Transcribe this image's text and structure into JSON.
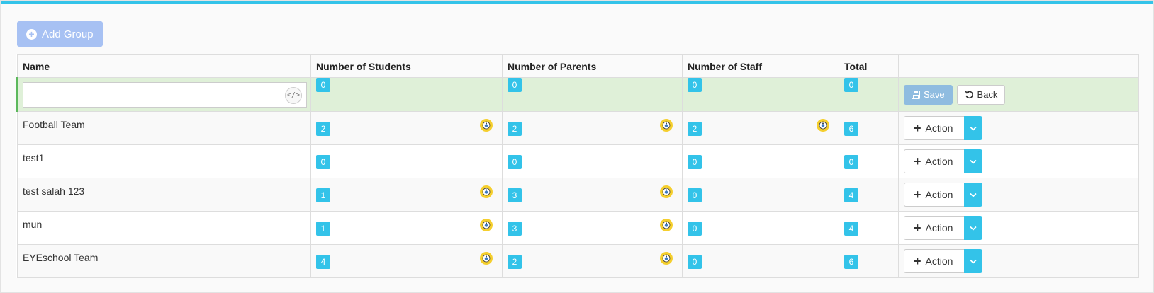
{
  "toolbar": {
    "add_group_label": "Add Group"
  },
  "table": {
    "headers": {
      "name": "Name",
      "students": "Number of Students",
      "parents": "Number of Parents",
      "staff": "Number of Staff",
      "total": "Total",
      "actions": ""
    },
    "new_row": {
      "name_value": "",
      "name_placeholder": "",
      "students": "0",
      "parents": "0",
      "staff": "0",
      "total": "0",
      "save_label": "Save",
      "back_label": "Back"
    },
    "rows": [
      {
        "name": "Football Team",
        "students": "2",
        "parents": "2",
        "staff": "2",
        "total": "6",
        "eye_students": true,
        "eye_parents": true,
        "eye_staff": true,
        "action_label": "Action"
      },
      {
        "name": "test1",
        "students": "0",
        "parents": "0",
        "staff": "0",
        "total": "0",
        "eye_students": false,
        "eye_parents": false,
        "eye_staff": false,
        "action_label": "Action"
      },
      {
        "name": "test salah 123",
        "students": "1",
        "parents": "3",
        "staff": "0",
        "total": "4",
        "eye_students": true,
        "eye_parents": true,
        "eye_staff": false,
        "action_label": "Action"
      },
      {
        "name": "mun",
        "students": "1",
        "parents": "3",
        "staff": "0",
        "total": "4",
        "eye_students": true,
        "eye_parents": true,
        "eye_staff": false,
        "action_label": "Action"
      },
      {
        "name": "EYEschool Team",
        "students": "4",
        "parents": "2",
        "staff": "0",
        "total": "6",
        "eye_students": true,
        "eye_parents": true,
        "eye_staff": false,
        "action_label": "Action"
      }
    ]
  },
  "colors": {
    "accent": "#33c3e9",
    "add_button": "#a7c1f3",
    "new_row_bg": "#dff0d8",
    "new_row_border": "#5cb85c",
    "eye_icon": "#f5cf2e"
  },
  "icons": {
    "add": "plus-circle-icon",
    "code": "code-icon",
    "save": "floppy-disk-icon",
    "back": "undo-icon",
    "view": "eye-icon",
    "action": "plus-icon",
    "caret": "chevron-down-icon"
  }
}
